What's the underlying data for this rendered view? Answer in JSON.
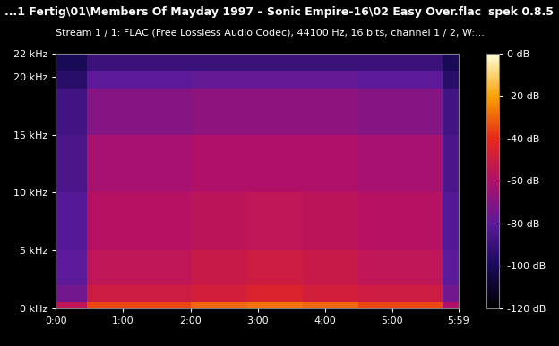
{
  "chart_data": {
    "type": "heatmap",
    "title": "...1 Fertig\\01\\Members Of Mayday 1997 – Sonic Empire-16\\02 Easy Over.flac",
    "subtitle": "Stream 1 / 1: FLAC (Free Lossless Audio Codec), 44100 Hz, 16 bits, channel 1 / 2, W:...",
    "annotations": [
      "spek 0.8.5"
    ],
    "x_edges": [
      0,
      28,
      60,
      120,
      170,
      220,
      270,
      300,
      345,
      359
    ],
    "y_edges": [
      0,
      0.5,
      2,
      5,
      10,
      15,
      19,
      20.5,
      22
    ],
    "cells": [
      [
        -55,
        -35,
        -35,
        -30,
        -28,
        -30,
        -35,
        -35,
        -60
      ],
      [
        -75,
        -50,
        -50,
        -48,
        -45,
        -48,
        -50,
        -50,
        -75
      ],
      [
        -80,
        -55,
        -55,
        -52,
        -50,
        -52,
        -55,
        -55,
        -80
      ],
      [
        -82,
        -58,
        -58,
        -56,
        -55,
        -56,
        -58,
        -58,
        -82
      ],
      [
        -85,
        -62,
        -62,
        -60,
        -60,
        -60,
        -62,
        -62,
        -85
      ],
      [
        -88,
        -70,
        -70,
        -68,
        -68,
        -68,
        -70,
        -70,
        -88
      ],
      [
        -95,
        -80,
        -80,
        -78,
        -78,
        -78,
        -80,
        -80,
        -95
      ],
      [
        -100,
        -90,
        -90,
        -90,
        -90,
        -90,
        -90,
        -90,
        -100
      ]
    ],
    "xlim": [
      0,
      359
    ],
    "ylim": [
      0,
      22
    ],
    "xticks": [
      {
        "value": 0,
        "label": "0:00"
      },
      {
        "value": 60,
        "label": "1:00"
      },
      {
        "value": 120,
        "label": "2:00"
      },
      {
        "value": 180,
        "label": "3:00"
      },
      {
        "value": 240,
        "label": "4:00"
      },
      {
        "value": 300,
        "label": "5:00"
      },
      {
        "value": 359,
        "label": "5:59"
      }
    ],
    "yticks": [
      {
        "value": 0,
        "label": "0 kHz"
      },
      {
        "value": 5,
        "label": "5 kHz"
      },
      {
        "value": 10,
        "label": "10 kHz"
      },
      {
        "value": 15,
        "label": "15 kHz"
      },
      {
        "value": 20,
        "label": "20 kHz"
      },
      {
        "value": 22,
        "label": "22 kHz"
      }
    ],
    "colorbar_lim": [
      -120,
      0
    ],
    "colorbar_ticks": [
      {
        "value": 0,
        "label": "0 dB"
      },
      {
        "value": -20,
        "label": "-20 dB"
      },
      {
        "value": -40,
        "label": "-40 dB"
      },
      {
        "value": -60,
        "label": "-60 dB"
      },
      {
        "value": -80,
        "label": "-80 dB"
      },
      {
        "value": -100,
        "label": "-100 dB"
      },
      {
        "value": -120,
        "label": "-120 dB"
      }
    ]
  }
}
